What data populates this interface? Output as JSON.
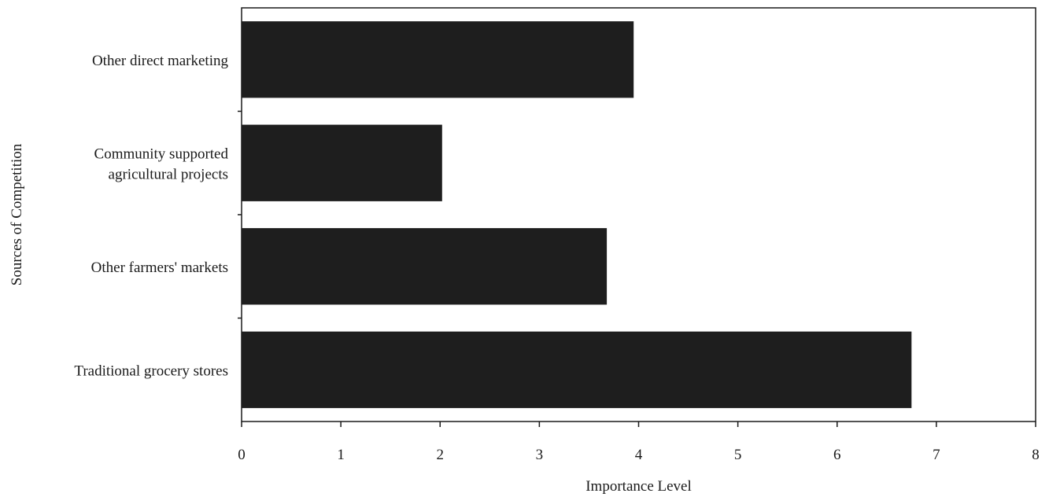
{
  "chart_data": {
    "type": "bar",
    "orientation": "horizontal",
    "categories": [
      [
        "Other direct marketing"
      ],
      [
        "Community supported",
        "agricultural projects"
      ],
      [
        "Other farmers' markets"
      ],
      [
        "Traditional grocery stores"
      ]
    ],
    "values": [
      3.95,
      2.02,
      3.68,
      6.75
    ],
    "xlabel": "Importance Level",
    "ylabel": "Sources of Competition",
    "xlim": [
      0,
      8
    ],
    "xticks": [
      "0",
      "1",
      "2",
      "3",
      "4",
      "5",
      "6",
      "7",
      "8"
    ],
    "grid": false,
    "bar_color": "#1e1e1e"
  }
}
